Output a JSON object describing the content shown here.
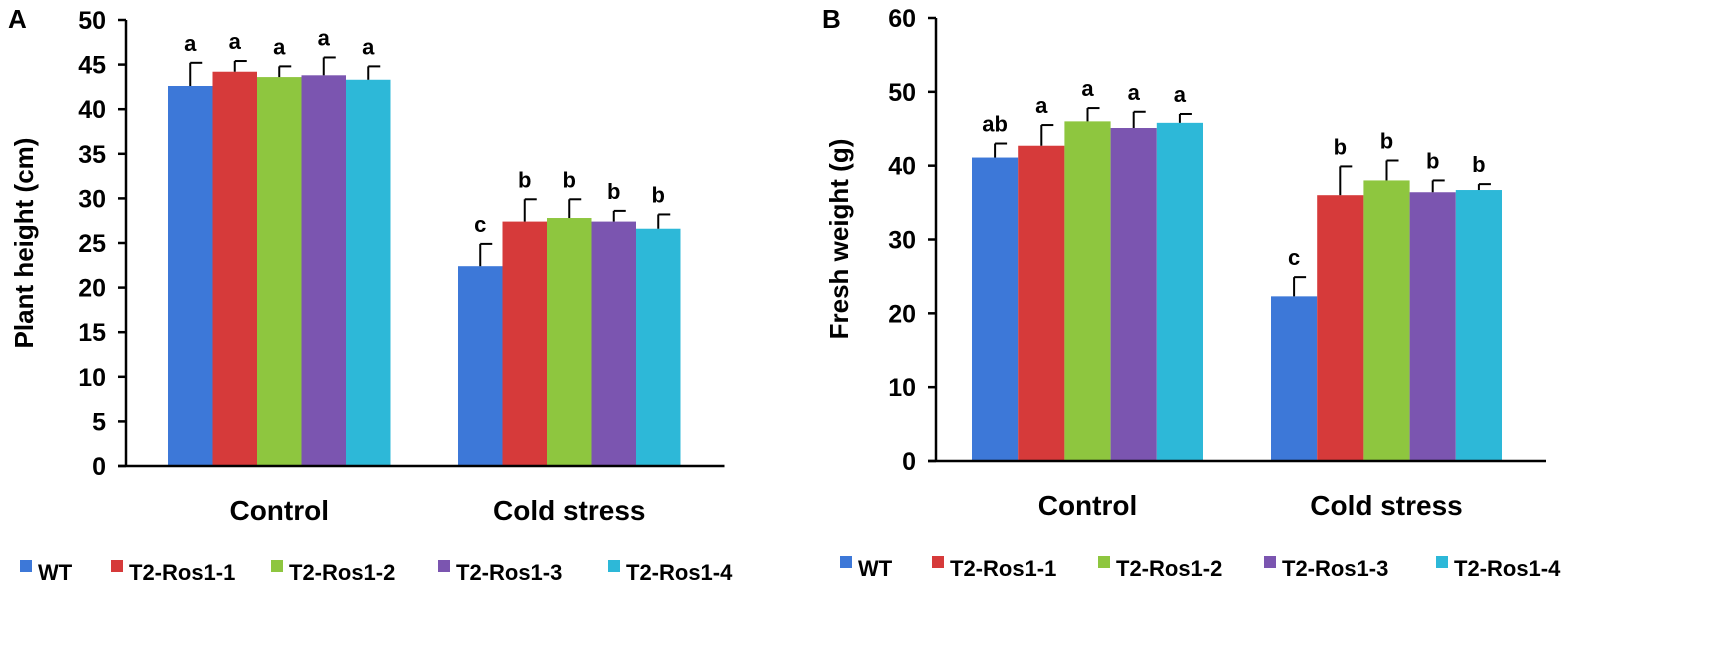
{
  "chart_data": [
    {
      "panel": "A",
      "type": "bar",
      "categories": [
        "Control",
        "Cold stress"
      ],
      "ylabel": "Plant height (cm)",
      "xlabel": "",
      "ylim": [
        0,
        50
      ],
      "yticks": [
        0,
        5,
        10,
        15,
        20,
        25,
        30,
        35,
        40,
        45,
        50
      ],
      "grid": false,
      "legend": "bottom",
      "series": [
        {
          "name": "WT",
          "color": "#3d78d8",
          "values": [
            42.6,
            22.4
          ],
          "errors": [
            2.6,
            2.5
          ],
          "letters": [
            "a",
            "c"
          ]
        },
        {
          "name": "T2-Ros1-1",
          "color": "#d63a3a",
          "values": [
            44.2,
            27.4
          ],
          "errors": [
            1.2,
            2.5
          ],
          "letters": [
            "a",
            "b"
          ]
        },
        {
          "name": "T2-Ros1-2",
          "color": "#8ec63f",
          "values": [
            43.6,
            27.8
          ],
          "errors": [
            1.2,
            2.1
          ],
          "letters": [
            "a",
            "b"
          ]
        },
        {
          "name": "T2-Ros1-3",
          "color": "#7b55b0",
          "values": [
            43.8,
            27.4
          ],
          "errors": [
            2.0,
            1.2
          ],
          "letters": [
            "a",
            "b"
          ]
        },
        {
          "name": "T2-Ros1-4",
          "color": "#2db8d8",
          "values": [
            43.3,
            26.6
          ],
          "errors": [
            1.5,
            1.6
          ],
          "letters": [
            "a",
            "b"
          ]
        }
      ]
    },
    {
      "panel": "B",
      "type": "bar",
      "categories": [
        "Control",
        "Cold stress"
      ],
      "ylabel": "Fresh weight (g)",
      "xlabel": "",
      "ylim": [
        0,
        60
      ],
      "yticks": [
        0,
        10,
        20,
        30,
        40,
        50,
        60
      ],
      "grid": false,
      "legend": "bottom",
      "series": [
        {
          "name": "WT",
          "color": "#3d78d8",
          "values": [
            41.1,
            22.3
          ],
          "errors": [
            1.9,
            2.6
          ],
          "letters": [
            "ab",
            "c"
          ]
        },
        {
          "name": "T2-Ros1-1",
          "color": "#d63a3a",
          "values": [
            42.7,
            36.0
          ],
          "errors": [
            2.8,
            3.9
          ],
          "letters": [
            "a",
            "b"
          ]
        },
        {
          "name": "T2-Ros1-2",
          "color": "#8ec63f",
          "values": [
            46.0,
            38.0
          ],
          "errors": [
            1.8,
            2.7
          ],
          "letters": [
            "a",
            "b"
          ]
        },
        {
          "name": "T2-Ros1-3",
          "color": "#7b55b0",
          "values": [
            45.1,
            36.4
          ],
          "errors": [
            2.2,
            1.6
          ],
          "letters": [
            "a",
            "b"
          ]
        },
        {
          "name": "T2-Ros1-4",
          "color": "#2db8d8",
          "values": [
            45.8,
            36.7
          ],
          "errors": [
            1.2,
            0.8
          ],
          "letters": [
            "a",
            "b"
          ]
        }
      ]
    }
  ]
}
